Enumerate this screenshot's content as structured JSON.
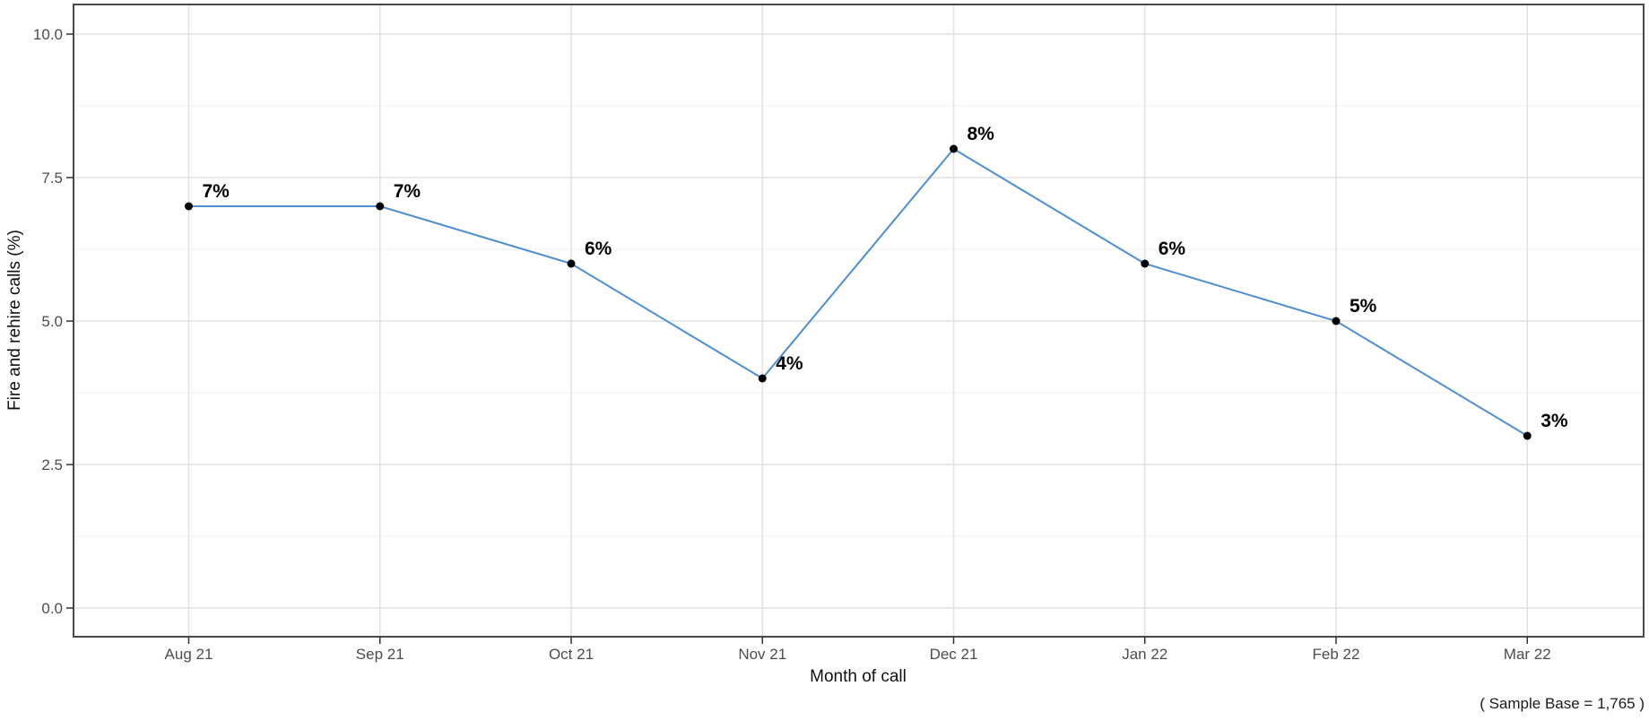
{
  "chart_data": {
    "type": "line",
    "title": "",
    "categories": [
      "Aug 21",
      "Sep 21",
      "Oct 21",
      "Nov 21",
      "Dec 21",
      "Jan 22",
      "Feb 22",
      "Mar 22"
    ],
    "series": [
      {
        "name": "Fire and rehire calls",
        "values": [
          7,
          7,
          6,
          4,
          8,
          6,
          5,
          3
        ]
      }
    ],
    "point_labels": [
      "7%",
      "7%",
      "6%",
      "4%",
      "8%",
      "6%",
      "5%",
      "3%"
    ],
    "xlabel": "Month of call",
    "ylabel": "Fire and rehire calls (%)",
    "y_ticks": [
      {
        "value": 0,
        "label": "0.0"
      },
      {
        "value": 2.5,
        "label": "2.5"
      },
      {
        "value": 5,
        "label": "5.0"
      },
      {
        "value": 7.5,
        "label": "7.5"
      },
      {
        "value": 10,
        "label": "10.0"
      }
    ],
    "y_minor_values": [
      1.25,
      3.75,
      6.25,
      8.75
    ],
    "ylim": [
      -0.5,
      10.5
    ],
    "grid": true,
    "legend_position": "none",
    "line_color": "#4d8ed3",
    "point_color": "#000000"
  },
  "footer": {
    "sample_base_label": "( Sample Base =  1,765 )"
  },
  "colors": {
    "panel_border": "#4a4a4a",
    "grid_major": "#e2e2e2",
    "grid_minor": "#f0f0f0",
    "tick_label": "#4d4d4d"
  }
}
